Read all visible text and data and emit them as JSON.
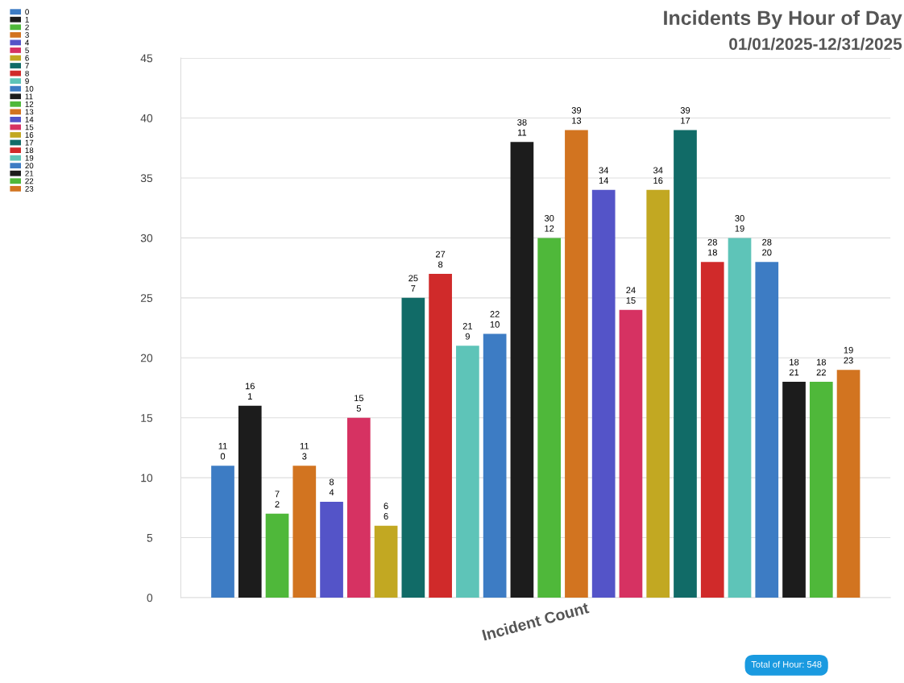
{
  "chart_data": {
    "type": "bar",
    "title": "Incidents By Hour of Day",
    "subtitle": "01/01/2025-12/31/2025",
    "categories": [
      "Incident Count"
    ],
    "series": [
      {
        "name": "0",
        "color": "#3d7cc4",
        "values": [
          11
        ]
      },
      {
        "name": "1",
        "color": "#1c1c1c",
        "values": [
          16
        ]
      },
      {
        "name": "2",
        "color": "#4fb83a",
        "values": [
          7
        ]
      },
      {
        "name": "3",
        "color": "#d27420",
        "values": [
          11
        ]
      },
      {
        "name": "4",
        "color": "#5454c8",
        "values": [
          8
        ]
      },
      {
        "name": "5",
        "color": "#d63262",
        "values": [
          15
        ]
      },
      {
        "name": "6",
        "color": "#c2a822",
        "values": [
          6
        ]
      },
      {
        "name": "7",
        "color": "#116b67",
        "values": [
          25
        ]
      },
      {
        "name": "8",
        "color": "#d02a2a",
        "values": [
          27
        ]
      },
      {
        "name": "9",
        "color": "#5ec4b8",
        "values": [
          21
        ]
      },
      {
        "name": "10",
        "color": "#3d7cc4",
        "values": [
          22
        ]
      },
      {
        "name": "11",
        "color": "#1c1c1c",
        "values": [
          38
        ]
      },
      {
        "name": "12",
        "color": "#4fb83a",
        "values": [
          30
        ]
      },
      {
        "name": "13",
        "color": "#d27420",
        "values": [
          39
        ]
      },
      {
        "name": "14",
        "color": "#5454c8",
        "values": [
          34
        ]
      },
      {
        "name": "15",
        "color": "#d63262",
        "values": [
          24
        ]
      },
      {
        "name": "16",
        "color": "#c2a822",
        "values": [
          34
        ]
      },
      {
        "name": "17",
        "color": "#116b67",
        "values": [
          39
        ]
      },
      {
        "name": "18",
        "color": "#d02a2a",
        "values": [
          28
        ]
      },
      {
        "name": "19",
        "color": "#5ec4b8",
        "values": [
          30
        ]
      },
      {
        "name": "20",
        "color": "#3d7cc4",
        "values": [
          28
        ]
      },
      {
        "name": "21",
        "color": "#1c1c1c",
        "values": [
          18
        ]
      },
      {
        "name": "22",
        "color": "#4fb83a",
        "values": [
          18
        ]
      },
      {
        "name": "23",
        "color": "#d27420",
        "values": [
          19
        ]
      }
    ],
    "ylim": [
      0,
      45
    ],
    "yticks": [
      0,
      5,
      10,
      15,
      20,
      25,
      30,
      35,
      40,
      45
    ],
    "grid": "y",
    "legend": "top left",
    "data_labels": true,
    "annotations": [
      "Total of Hour: 548"
    ]
  }
}
